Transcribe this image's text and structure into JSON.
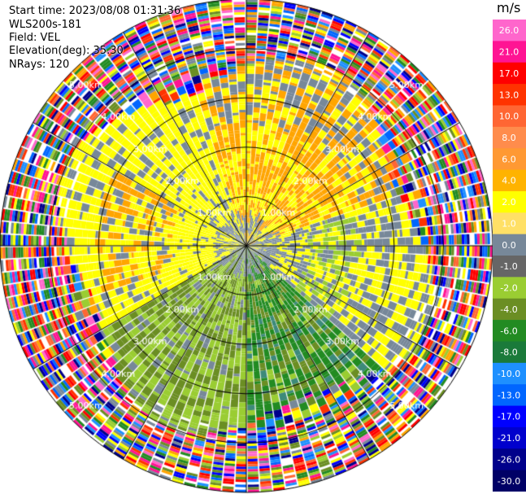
{
  "info": {
    "start_time": "Start time: 2023/08/08 01:31:36",
    "instrument": "WLS200s-181",
    "field": "Field: VEL",
    "elevation": "Elevation(deg): 35.30",
    "nrays": "NRays: 120"
  },
  "chart_data": {
    "type": "ppi",
    "field": "VEL",
    "units": "m/s",
    "n_rays": 120,
    "range_rings_km": [
      1.0,
      2.0,
      3.0,
      4.0,
      5.0
    ],
    "range_ring_labels": [
      "1.00km",
      "2.00km",
      "3.00km",
      "4.00km",
      "5.00km"
    ],
    "max_range_km": 5.0,
    "colorbar": {
      "title": "m/s",
      "tick_labels": [
        "26.0",
        "21.0",
        "17.0",
        "13.0",
        "10.0",
        "8.0",
        "6.0",
        "4.0",
        "2.0",
        "1.0",
        "0.0",
        "-1.0",
        "-2.0",
        "-4.0",
        "-6.0",
        "-8.0",
        "-10.0",
        "-13.0",
        "-17.0",
        "-21.0",
        "-26.0",
        "-30.0"
      ],
      "colors": [
        "#ff66cc",
        "#ff1493",
        "#ff0000",
        "#ff3300",
        "#ff6633",
        "#ff8c4c",
        "#ff9933",
        "#ffb300",
        "#ffff00",
        "#ffe066",
        "#778899",
        "#666666",
        "#9acd32",
        "#6b8e23",
        "#228b22",
        "#1a7a3a",
        "#1e90ff",
        "#0066ff",
        "#0000ff",
        "#0000cd",
        "#00008b",
        "#000066"
      ]
    }
  }
}
